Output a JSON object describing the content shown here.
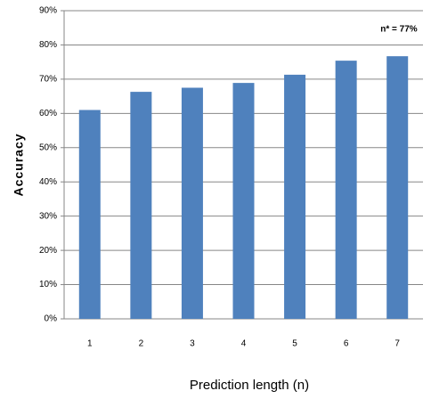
{
  "chart_data": {
    "type": "bar",
    "categories": [
      "1",
      "2",
      "3",
      "4",
      "5",
      "6",
      "7"
    ],
    "values": [
      61,
      66.3,
      67.5,
      68.9,
      71.3,
      75.4,
      76.7
    ],
    "color": "#4f81bd",
    "ylim": [
      0,
      90
    ],
    "yticks": [
      {
        "value": 0,
        "label": "0%"
      },
      {
        "value": 10,
        "label": "10%"
      },
      {
        "value": 20,
        "label": "20%"
      },
      {
        "value": 30,
        "label": "30%"
      },
      {
        "value": 40,
        "label": "40%"
      },
      {
        "value": 50,
        "label": "50%"
      },
      {
        "value": 60,
        "label": "60%"
      },
      {
        "value": 70,
        "label": "70%"
      },
      {
        "value": 80,
        "label": "80%"
      },
      {
        "value": 90,
        "label": "90%"
      }
    ],
    "grid": true,
    "xlabel": "Prediction length (n)",
    "ylabel": "Accuracy",
    "annotation": "n* = 77%"
  }
}
